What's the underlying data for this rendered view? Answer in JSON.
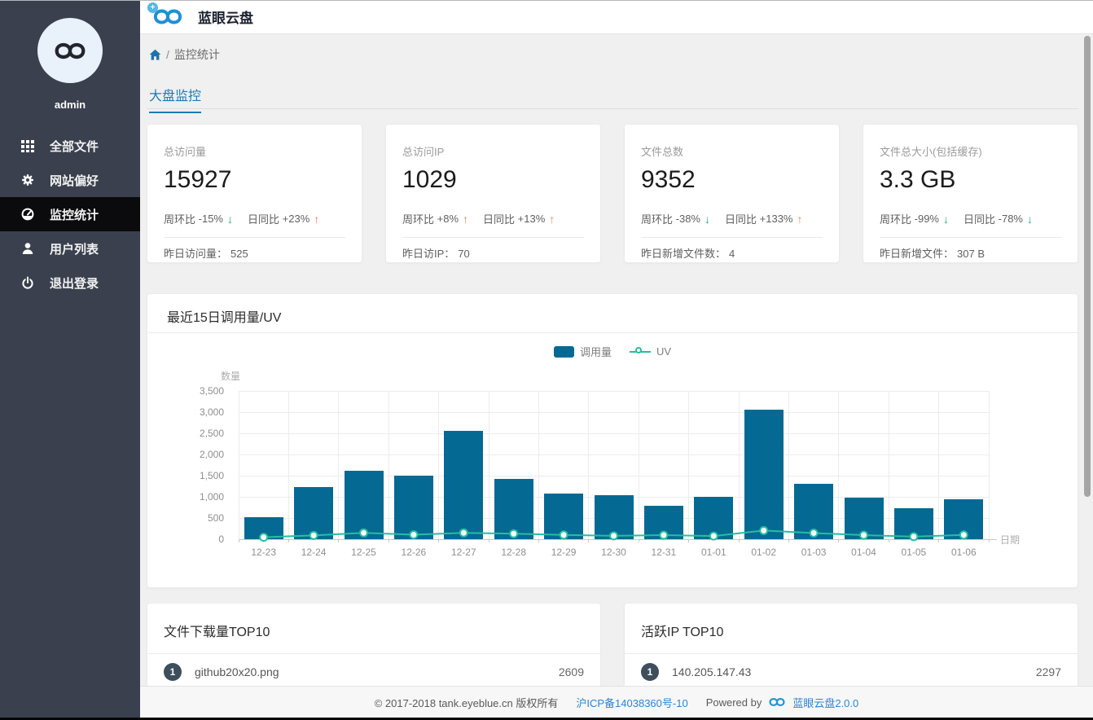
{
  "app": {
    "title": "蓝眼云盘"
  },
  "icons": {
    "up_arrow": "↑",
    "down_arrow": "↓",
    "plus": "+"
  },
  "colors": {
    "sidebar_bg": "#3a404e",
    "sidebar_active_bg": "#0b0b0d",
    "accent_blue": "#1d7bb0",
    "link_blue": "#2b85d8",
    "bar_blue": "#056a93",
    "uv_teal": "#27bda1",
    "trend_up": "#f5815c",
    "trend_down": "#16b777",
    "badge": "#3d4e5c"
  },
  "sidebar": {
    "username": "admin",
    "items": [
      {
        "label": "全部文件",
        "icon": "grid-icon",
        "active": false
      },
      {
        "label": "网站偏好",
        "icon": "gear-icon",
        "active": false
      },
      {
        "label": "监控统计",
        "icon": "dashboard-icon",
        "active": true
      },
      {
        "label": "用户列表",
        "icon": "user-icon",
        "active": false
      },
      {
        "label": "退出登录",
        "icon": "power-icon",
        "active": false
      }
    ]
  },
  "breadcrumb": {
    "separator": "/",
    "current": "监控统计"
  },
  "tabs": [
    {
      "label": "大盘监控",
      "active": true
    }
  ],
  "stat_cards": [
    {
      "title": "总访问量",
      "value": "15927",
      "week_label": "周环比",
      "week_value": "-15%",
      "week_trend": "down",
      "day_label": "日同比",
      "day_value": "+23%",
      "day_trend": "up",
      "bottom_label": "昨日访问量：",
      "bottom_value": "525"
    },
    {
      "title": "总访问IP",
      "value": "1029",
      "week_label": "周环比",
      "week_value": "+8%",
      "week_trend": "up",
      "day_label": "日同比",
      "day_value": "+13%",
      "day_trend": "up",
      "bottom_label": "昨日访IP：",
      "bottom_value": "70"
    },
    {
      "title": "文件总数",
      "value": "9352",
      "week_label": "周环比",
      "week_value": "-38%",
      "week_trend": "down",
      "day_label": "日同比",
      "day_value": "+133%",
      "day_trend": "up",
      "bottom_label": "昨日新增文件数：",
      "bottom_value": "4"
    },
    {
      "title": "文件总大小(包括缓存)",
      "value": "3.3 GB",
      "week_label": "周环比",
      "week_value": "-99%",
      "week_trend": "down",
      "day_label": "日同比",
      "day_value": "-78%",
      "day_trend": "down",
      "bottom_label": "昨日新增文件：",
      "bottom_value": "307 B"
    }
  ],
  "chart_card": {
    "title": "最近15日调用量/UV"
  },
  "chart_data": {
    "type": "bar",
    "title": "最近15日调用量/UV",
    "categories": [
      "12-23",
      "12-24",
      "12-25",
      "12-26",
      "12-27",
      "12-28",
      "12-29",
      "12-30",
      "12-31",
      "01-01",
      "01-02",
      "01-03",
      "01-04",
      "01-05",
      "01-06"
    ],
    "series": [
      {
        "name": "调用量",
        "type": "bar",
        "color": "#056a93",
        "values": [
          510,
          1240,
          1615,
          1500,
          2560,
          1420,
          1080,
          1040,
          780,
          1000,
          3060,
          1300,
          990,
          730,
          940
        ]
      },
      {
        "name": "UV",
        "type": "line",
        "color": "#27bda1",
        "values": [
          45,
          90,
          150,
          105,
          150,
          130,
          100,
          80,
          95,
          75,
          205,
          145,
          95,
          60,
          100
        ]
      }
    ],
    "xlabel": "日期",
    "ylabel": "数量",
    "ylim": [
      0,
      3500
    ],
    "y_ticks": [
      "0",
      "500",
      "1,000",
      "1,500",
      "2,000",
      "2,500",
      "3,000",
      "3,500"
    ],
    "grid": true,
    "legend_position": "top-center"
  },
  "top_lists": [
    {
      "title": "文件下载量TOP10",
      "rows": [
        {
          "rank": "1",
          "name": "github20x20.png",
          "value": "2609"
        }
      ]
    },
    {
      "title": "活跃IP TOP10",
      "rows": [
        {
          "rank": "1",
          "name": "140.205.147.43",
          "value": "2297"
        }
      ]
    }
  ],
  "footer": {
    "copyright": "© 2017-2018 tank.eyeblue.cn 版权所有",
    "icp": "沪ICP备14038360号-10",
    "powered_by": "Powered by",
    "product": "蓝眼云盘2.0.0"
  }
}
